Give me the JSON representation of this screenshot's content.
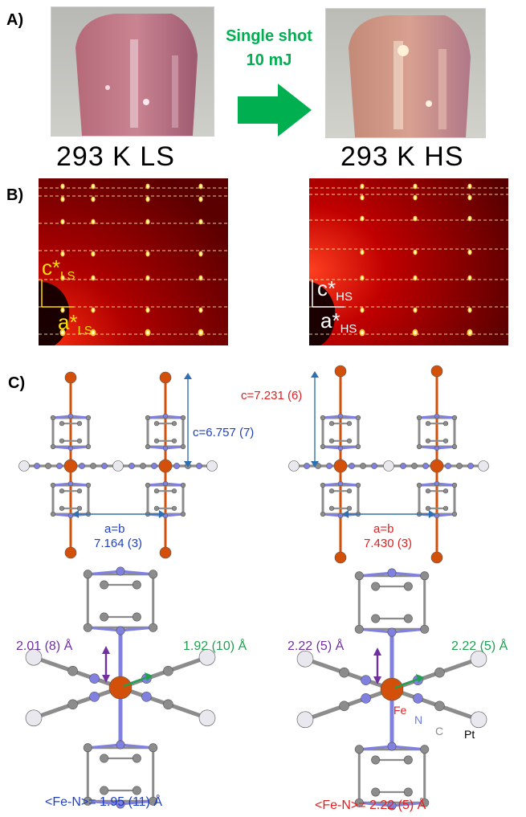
{
  "colors": {
    "arrow": "#00b050",
    "ls_blue": "#1f3fbf",
    "hs_red": "#e02020",
    "yellow": "#ffe000",
    "purple": "#7030a0",
    "green": "#20a050",
    "fe_orange": "#d2500a",
    "n_blue": "#8080e0",
    "c_gray": "#8c8c8c",
    "pt_white": "#e8e8ee",
    "axis_blue": "#3070b0"
  },
  "panel_a": {
    "label": "A)",
    "shot_line1": "Single shot",
    "shot_line2": "10 mJ",
    "left_caption": "293 K LS",
    "right_caption": "293 K HS"
  },
  "panel_b": {
    "label": "B)",
    "left": {
      "c_axis": "c*",
      "c_sub": "LS",
      "a_axis": "a*",
      "a_sub": "LS"
    },
    "right": {
      "c_axis": "c*",
      "c_sub": "HS",
      "a_axis": "a*",
      "a_sub": "HS"
    }
  },
  "panel_c": {
    "label": "C)",
    "left_cell": {
      "c_param": "c=6.757 (7)",
      "ab_label": "a=b",
      "ab_value": "7.164 (3)"
    },
    "right_cell": {
      "c_param": "c=7.231 (6)",
      "ab_label": "a=b",
      "ab_value": "7.430 (3)"
    },
    "left_octa": {
      "axial": "2.01 (8) Å",
      "equatorial": "1.92 (10) Å",
      "mean": "<Fe-N>= 1.95 (11) Å"
    },
    "right_octa": {
      "axial": "2.22 (5) Å",
      "equatorial": "2.22 (5) Å",
      "mean": "<Fe-N>= 2.22 (5) Å",
      "legend_fe": "Fe",
      "legend_n": "N",
      "legend_c": "C",
      "legend_pt": "Pt"
    }
  }
}
